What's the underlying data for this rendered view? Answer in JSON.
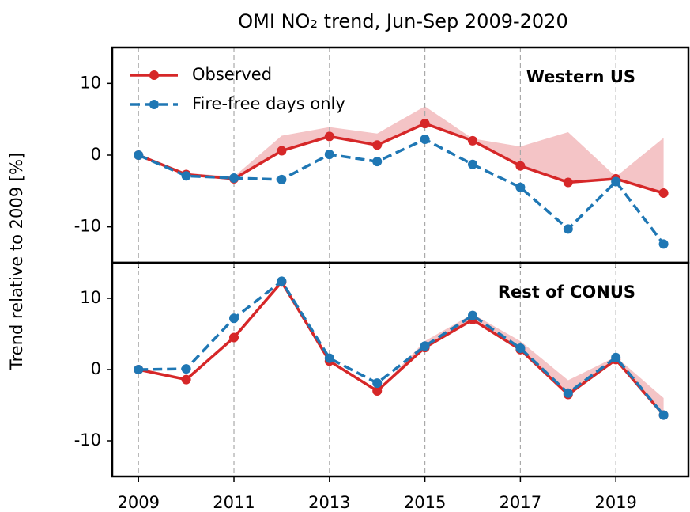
{
  "title": "OMI NO₂ trend, Jun-Sep 2009-2020",
  "ylabel": "Trend relative to 2009 [%]",
  "chart_data": [
    {
      "type": "line",
      "annotation": "Western US",
      "x": [
        2009,
        2010,
        2011,
        2012,
        2013,
        2014,
        2015,
        2016,
        2017,
        2018,
        2019,
        2020
      ],
      "series": [
        {
          "name": "Observed",
          "color": "#d62728",
          "dash": false,
          "values": [
            0,
            -2.7,
            -3.3,
            0.6,
            2.6,
            1.4,
            4.4,
            2.0,
            -1.5,
            -3.8,
            -3.3,
            -5.3
          ]
        },
        {
          "name": "Fire-free days only",
          "color": "#1f77b4",
          "dash": true,
          "values": [
            0,
            -2.9,
            -3.2,
            -3.4,
            0.1,
            -0.9,
            2.2,
            -1.3,
            -4.5,
            -10.3,
            -3.7,
            -12.4
          ]
        }
      ],
      "band": {
        "color": "#f4c4c6",
        "upper": [
          0,
          -2.5,
          -3.0,
          2.7,
          3.9,
          3.0,
          6.8,
          2.3,
          1.2,
          3.2,
          -3.0,
          2.4
        ]
      },
      "xlim": [
        2008.45,
        2020.52
      ],
      "xticks": [
        2009,
        2011,
        2013,
        2015,
        2017,
        2019
      ],
      "ylim": [
        -15,
        15
      ],
      "yticks": [
        -10,
        0,
        10
      ],
      "grid": true,
      "legend": "upper left",
      "show_xtick_labels": false
    },
    {
      "type": "line",
      "annotation": "Rest of CONUS",
      "x": [
        2009,
        2010,
        2011,
        2012,
        2013,
        2014,
        2015,
        2016,
        2017,
        2018,
        2019,
        2020
      ],
      "series": [
        {
          "color": "#d62728",
          "dash": false,
          "values": [
            0,
            -1.4,
            4.5,
            12.3,
            1.2,
            -3.0,
            3.1,
            7.0,
            2.8,
            -3.5,
            1.4,
            -6.4
          ]
        },
        {
          "color": "#1f77b4",
          "dash": true,
          "values": [
            0,
            0.1,
            7.2,
            12.4,
            1.6,
            -1.9,
            3.3,
            7.6,
            3.0,
            -3.3,
            1.7,
            -6.4
          ]
        }
      ],
      "band": {
        "color": "#f4c4c6",
        "upper": [
          0,
          -1.4,
          4.5,
          12.3,
          1.2,
          -3.0,
          4.0,
          7.8,
          4.0,
          -1.5,
          1.8,
          -4.0
        ]
      },
      "xlim": [
        2008.45,
        2020.52
      ],
      "xticks": [
        2009,
        2011,
        2013,
        2015,
        2017,
        2019
      ],
      "ylim": [
        -15,
        15
      ],
      "yticks": [
        -10,
        0,
        10
      ],
      "grid": true,
      "show_xtick_labels": true
    }
  ]
}
